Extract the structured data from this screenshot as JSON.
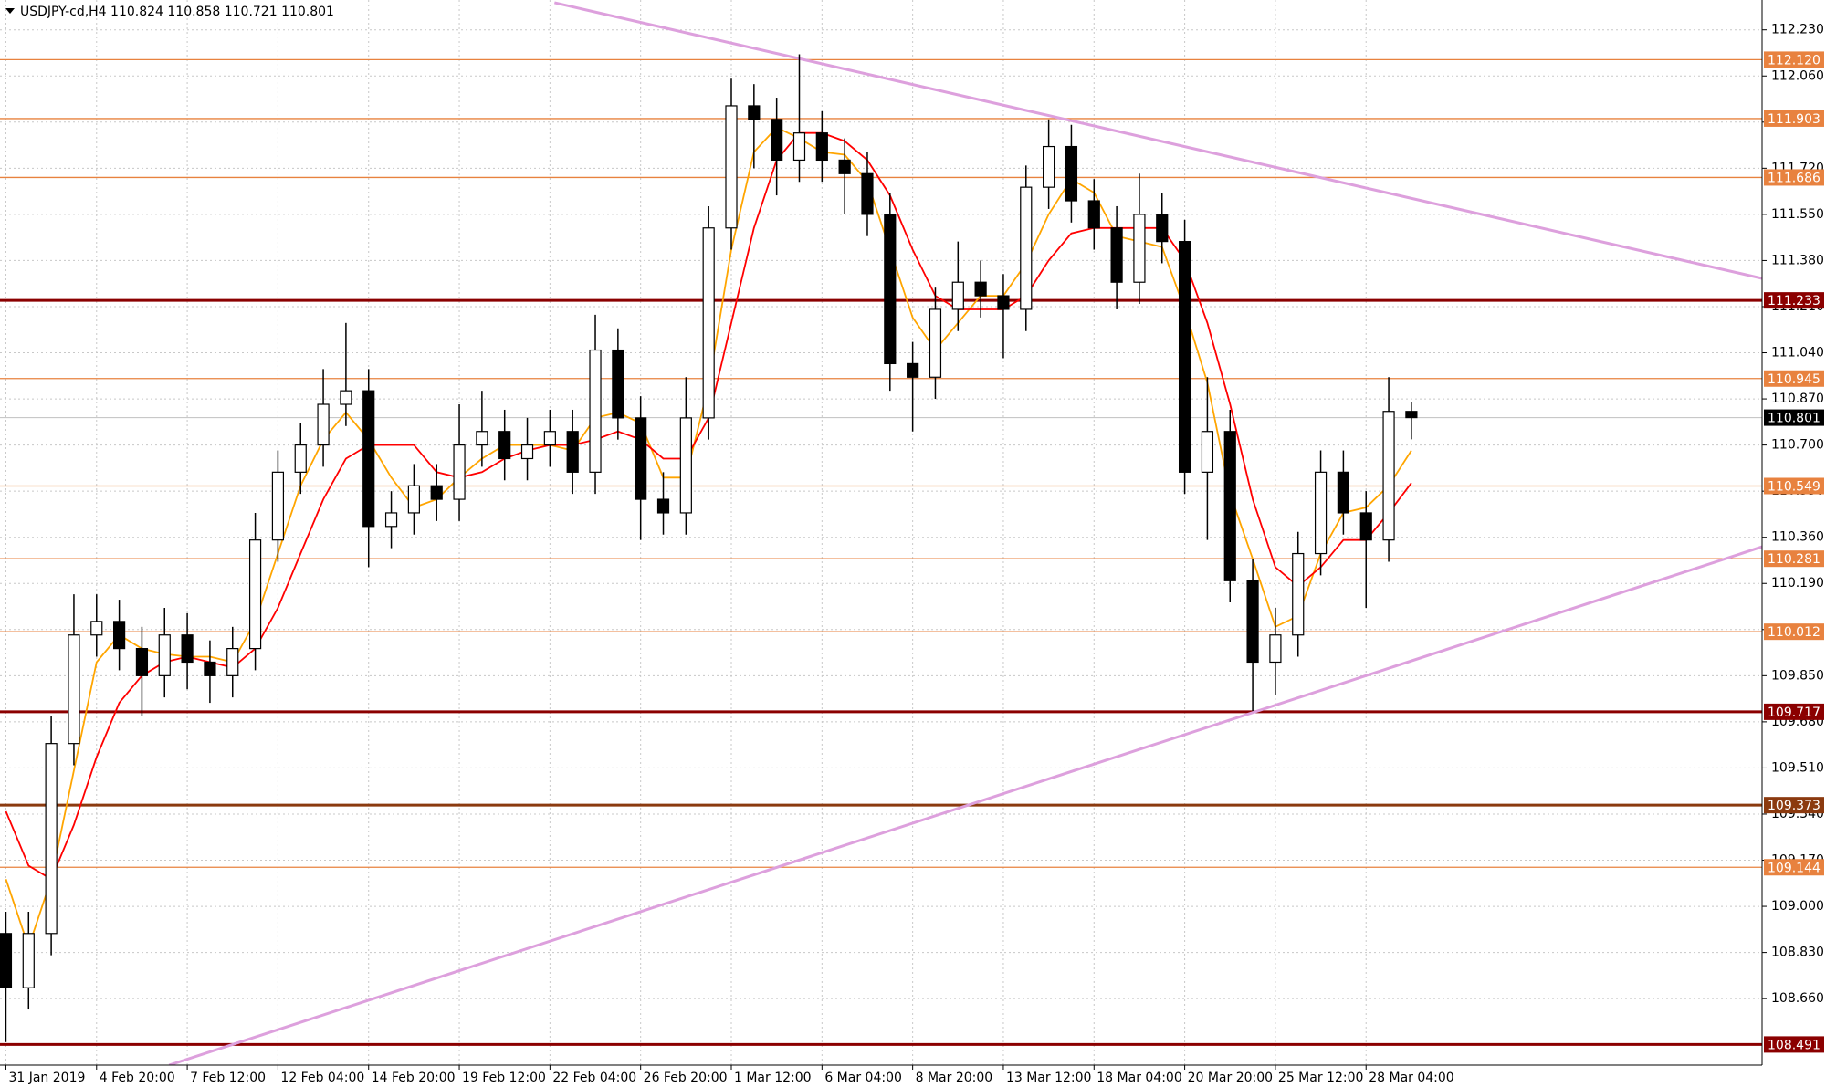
{
  "chart_data": {
    "type": "candlestick",
    "title": "USDJPY-cd,H4  110.824 110.858 110.721 110.801",
    "categories": [
      "31 Jan 2019",
      null,
      null,
      null,
      "4 Feb 20:00",
      null,
      null,
      null,
      "7 Feb 12:00",
      null,
      null,
      null,
      "12 Feb 04:00",
      null,
      null,
      null,
      "14 Feb 20:00",
      null,
      null,
      null,
      "19 Feb 12:00",
      null,
      null,
      null,
      "22 Feb 04:00",
      null,
      null,
      null,
      "26 Feb 20:00",
      null,
      null,
      null,
      "1 Mar 12:00",
      null,
      null,
      null,
      "6 Mar 04:00",
      null,
      null,
      null,
      "8 Mar 20:00",
      null,
      null,
      null,
      "13 Mar 12:00",
      null,
      null,
      null,
      "18 Mar 04:00",
      null,
      null,
      null,
      "20 Mar 20:00",
      null,
      null,
      null,
      "25 Mar 12:00",
      null,
      null,
      null,
      "28 Mar 04:00",
      null,
      null
    ],
    "open": [
      108.9,
      108.7,
      108.9,
      109.6,
      110.0,
      110.05,
      109.95,
      109.85,
      110.0,
      109.9,
      109.85,
      109.95,
      110.35,
      110.6,
      110.7,
      110.85,
      110.9,
      110.4,
      110.45,
      110.55,
      110.5,
      110.7,
      110.75,
      110.65,
      110.7,
      110.75,
      110.6,
      111.05,
      110.8,
      110.5,
      110.45,
      110.8,
      111.5,
      111.95,
      111.9,
      111.75,
      111.85,
      111.75,
      111.7,
      111.55,
      111.0,
      110.95,
      111.2,
      111.3,
      111.25,
      111.2,
      111.65,
      111.8,
      111.6,
      111.5,
      111.3,
      111.55,
      111.45,
      110.6,
      110.75,
      110.2,
      109.9,
      110.0,
      110.3,
      110.6,
      110.45,
      110.35,
      110.824
    ],
    "high": [
      108.98,
      108.98,
      109.7,
      110.15,
      110.15,
      110.13,
      110.03,
      110.1,
      110.08,
      109.98,
      110.03,
      110.45,
      110.68,
      110.78,
      110.98,
      111.15,
      110.98,
      110.53,
      110.63,
      110.63,
      110.85,
      110.9,
      110.83,
      110.8,
      110.83,
      110.83,
      111.18,
      111.13,
      110.88,
      110.6,
      110.95,
      111.58,
      112.05,
      112.03,
      111.98,
      112.14,
      111.93,
      111.83,
      111.78,
      111.63,
      111.08,
      111.28,
      111.45,
      111.38,
      111.33,
      111.73,
      111.9,
      111.88,
      111.68,
      111.58,
      111.7,
      111.63,
      111.53,
      110.95,
      110.83,
      110.28,
      110.1,
      110.38,
      110.68,
      110.68,
      110.53,
      110.95,
      110.858
    ],
    "low": [
      108.5,
      108.62,
      108.82,
      109.52,
      109.92,
      109.87,
      109.7,
      109.77,
      109.8,
      109.75,
      109.77,
      109.87,
      110.27,
      110.52,
      110.62,
      110.77,
      110.25,
      110.32,
      110.37,
      110.42,
      110.42,
      110.62,
      110.57,
      110.57,
      110.62,
      110.52,
      110.52,
      110.72,
      110.35,
      110.37,
      110.37,
      110.72,
      111.42,
      111.72,
      111.62,
      111.67,
      111.67,
      111.55,
      111.47,
      110.9,
      110.75,
      110.87,
      111.12,
      111.17,
      111.02,
      111.12,
      111.57,
      111.52,
      111.42,
      111.2,
      111.22,
      111.37,
      110.52,
      110.35,
      110.12,
      109.72,
      109.78,
      109.92,
      110.22,
      110.37,
      110.1,
      110.27,
      110.721
    ],
    "close": [
      108.7,
      108.9,
      109.6,
      110.0,
      110.05,
      109.95,
      109.85,
      110.0,
      109.9,
      109.85,
      109.95,
      110.35,
      110.6,
      110.7,
      110.85,
      110.9,
      110.4,
      110.45,
      110.55,
      110.5,
      110.7,
      110.75,
      110.65,
      110.7,
      110.75,
      110.6,
      111.05,
      110.8,
      110.5,
      110.45,
      110.8,
      111.5,
      111.95,
      111.9,
      111.75,
      111.85,
      111.75,
      111.7,
      111.55,
      111.0,
      110.95,
      111.2,
      111.3,
      111.25,
      111.2,
      111.65,
      111.8,
      111.6,
      111.5,
      111.3,
      111.55,
      111.45,
      110.6,
      110.75,
      110.2,
      109.9,
      110.0,
      110.3,
      110.6,
      110.45,
      110.35,
      110.824,
      110.801
    ],
    "up_color": "#ffffff",
    "down_color": "#000000",
    "series": [
      {
        "color": "#ffa500",
        "values": [
          109.1,
          108.85,
          109.1,
          109.5,
          109.9,
          110.0,
          109.95,
          109.93,
          109.92,
          109.92,
          109.9,
          110.05,
          110.3,
          110.55,
          110.72,
          110.82,
          110.72,
          110.58,
          110.47,
          110.5,
          110.58,
          110.65,
          110.7,
          110.7,
          110.7,
          110.68,
          110.8,
          110.82,
          110.78,
          110.58,
          110.58,
          110.92,
          111.42,
          111.78,
          111.87,
          111.83,
          111.78,
          111.77,
          111.67,
          111.42,
          111.17,
          111.05,
          111.15,
          111.25,
          111.25,
          111.37,
          111.55,
          111.68,
          111.63,
          111.47,
          111.45,
          111.43,
          111.2,
          110.93,
          110.52,
          110.28,
          110.03,
          110.07,
          110.3,
          110.45,
          110.47,
          110.55,
          110.68
        ]
      },
      {
        "color": "#ff0000",
        "values": [
          109.35,
          109.15,
          109.1,
          109.3,
          109.55,
          109.75,
          109.85,
          109.9,
          109.92,
          109.9,
          109.88,
          109.95,
          110.1,
          110.3,
          110.5,
          110.65,
          110.7,
          110.7,
          110.7,
          110.6,
          110.58,
          110.6,
          110.65,
          110.68,
          110.7,
          110.7,
          110.72,
          110.75,
          110.72,
          110.65,
          110.65,
          110.8,
          111.15,
          111.5,
          111.75,
          111.85,
          111.85,
          111.82,
          111.75,
          111.62,
          111.42,
          111.25,
          111.2,
          111.2,
          111.2,
          111.25,
          111.38,
          111.48,
          111.5,
          111.5,
          111.5,
          111.5,
          111.38,
          111.15,
          110.85,
          110.5,
          110.25,
          110.18,
          110.25,
          110.35,
          110.35,
          110.45,
          110.56
        ]
      }
    ],
    "xlim": [
      -0.26,
      77.47
    ],
    "ylim": [
      108.415,
      112.34
    ],
    "yticks": [
      {
        "value": 112.23,
        "label": "112.230"
      },
      {
        "value": 112.06,
        "label": "112.060"
      },
      {
        "value": 111.89,
        "label": "111.890"
      },
      {
        "value": 111.72,
        "label": "111.720"
      },
      {
        "value": 111.55,
        "label": "111.550"
      },
      {
        "value": 111.38,
        "label": "111.380"
      },
      {
        "value": 111.21,
        "label": "111.210"
      },
      {
        "value": 111.04,
        "label": "111.040"
      },
      {
        "value": 110.87,
        "label": "110.870"
      },
      {
        "value": 110.7,
        "label": "110.700"
      },
      {
        "value": 110.53,
        "label": "110.530"
      },
      {
        "value": 110.36,
        "label": "110.360"
      },
      {
        "value": 110.19,
        "label": "110.190"
      },
      {
        "value": 110.02,
        "label": "110.020"
      },
      {
        "value": 109.85,
        "label": "109.850"
      },
      {
        "value": 109.68,
        "label": "109.680"
      },
      {
        "value": 109.51,
        "label": "109.510"
      },
      {
        "value": 109.34,
        "label": "109.340"
      },
      {
        "value": 109.17,
        "label": "109.170"
      },
      {
        "value": 109.0,
        "label": "109.000"
      },
      {
        "value": 108.83,
        "label": "108.830"
      },
      {
        "value": 108.66,
        "label": "108.660"
      }
    ],
    "grid": true,
    "levels": [
      {
        "value": 112.12,
        "label": "112.120",
        "color": "#e8823f"
      },
      {
        "value": 111.903,
        "label": "111.903",
        "color": "#e8823f"
      },
      {
        "value": 111.686,
        "label": "111.686",
        "color": "#e8823f"
      },
      {
        "value": 111.233,
        "label": "111.233",
        "color": "#8b0000"
      },
      {
        "value": 110.945,
        "label": "110.945",
        "color": "#e8823f"
      },
      {
        "value": 110.549,
        "label": "110.549",
        "color": "#e8823f"
      },
      {
        "value": 110.281,
        "label": "110.281",
        "color": "#e8823f"
      },
      {
        "value": 110.012,
        "label": "110.012",
        "color": "#e8823f"
      },
      {
        "value": 109.717,
        "label": "109.717",
        "color": "#8b0000"
      },
      {
        "value": 109.373,
        "label": "109.373",
        "color": "#8b3a0f"
      },
      {
        "value": 109.144,
        "label": "109.144",
        "color": "#e8823f"
      },
      {
        "value": 108.491,
        "label": "108.491",
        "color": "#8b0000"
      }
    ],
    "last": {
      "value": 110.801,
      "label": "110.801"
    },
    "trendlines": [
      {
        "color": "#dda0dd",
        "x": [
          24.2,
          77.47
        ],
        "y": [
          112.33,
          111.314
        ]
      },
      {
        "color": "#dda0dd",
        "x": [
          7.2,
          77.47
        ],
        "y": [
          108.415,
          110.325
        ]
      }
    ]
  }
}
